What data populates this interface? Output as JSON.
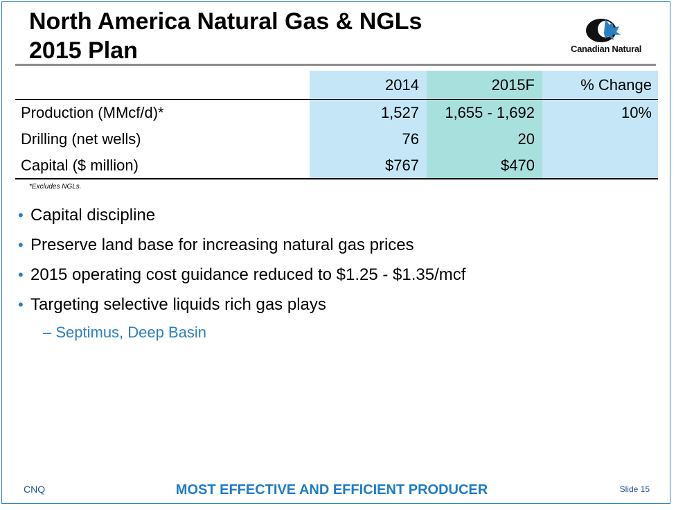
{
  "slide": {
    "title": "North America Natural Gas & NGLs\n2015 Plan",
    "logo_text": "Canadian Natural"
  },
  "table": {
    "headers": [
      "",
      "2014",
      "2015F",
      "% Change"
    ],
    "rows": [
      {
        "label": "Production (MMcf/d)*",
        "y2014": "1,527",
        "y2015f": "1,655 - 1,692",
        "change": "10%"
      },
      {
        "label": "Drilling (net wells)",
        "y2014": "76",
        "y2015f": "20",
        "change": ""
      },
      {
        "label": "Capital ($ million)",
        "y2014": "$767",
        "y2015f": "$470",
        "change": ""
      }
    ],
    "column_colors": {
      "c2014": "#c5e6f6",
      "c2015f": "#a8e0de",
      "change": "#c5e6f6"
    }
  },
  "footnote": "*Excludes NGLs.",
  "bullets": [
    "Capital discipline",
    "Preserve land base for increasing natural gas prices",
    "2015 operating cost guidance reduced to $1.25 - $1.35/mcf",
    "Targeting selective liquids rich gas plays"
  ],
  "sub_bullet": "– Septimus, Deep Basin",
  "bullet_marker": "•",
  "footer": {
    "left": "CNQ",
    "center": "MOST EFFECTIVE AND EFFICIENT PRODUCER",
    "right": "Slide 15"
  },
  "colors": {
    "accent": "#2a7fc0",
    "footer_text": "#1f7bc8"
  }
}
